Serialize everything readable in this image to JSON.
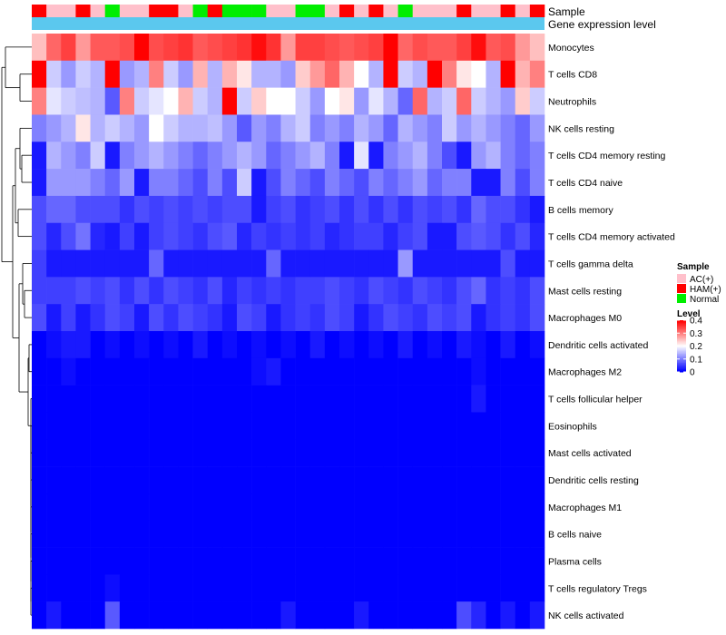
{
  "chart_data": {
    "type": "heatmap",
    "annotation_labels": [
      "Sample",
      "Gene expression level"
    ],
    "sample_groups": [
      "HAM(+)",
      "AC(+)",
      "AC(+)",
      "HAM(+)",
      "AC(+)",
      "Normal",
      "AC(+)",
      "AC(+)",
      "HAM(+)",
      "HAM(+)",
      "AC(+)",
      "Normal",
      "HAM(+)",
      "Normal",
      "Normal",
      "Normal",
      "AC(+)",
      "AC(+)",
      "Normal",
      "Normal",
      "AC(+)",
      "HAM(+)",
      "AC(+)",
      "HAM(+)",
      "AC(+)",
      "Normal",
      "AC(+)",
      "AC(+)",
      "AC(+)",
      "HAM(+)",
      "AC(+)",
      "AC(+)",
      "HAM(+)",
      "AC(+)",
      "HAM(+)"
    ],
    "rows": [
      "Monocytes",
      "T cells CD8",
      "Neutrophils",
      "NK cells resting",
      "T cells CD4 memory resting",
      "T cells CD4 naive",
      "B cells memory",
      "T cells CD4 memory activated",
      "T cells gamma delta",
      "Mast cells resting",
      "Macrophages M0",
      "Dendritic cells activated",
      "Macrophages M2",
      "T cells follicular helper",
      "Eosinophils",
      "Mast cells activated",
      "Dendritic cells resting",
      "Macrophages M1",
      "B cells naive",
      "Plasma cells",
      "T cells regulatory  Tregs",
      "NK cells activated"
    ],
    "values": [
      [
        0.25,
        0.32,
        0.35,
        0.28,
        0.33,
        0.33,
        0.34,
        0.4,
        0.34,
        0.35,
        0.36,
        0.33,
        0.34,
        0.35,
        0.36,
        0.39,
        0.36,
        0.28,
        0.35,
        0.35,
        0.34,
        0.33,
        0.34,
        0.35,
        0.4,
        0.32,
        0.34,
        0.33,
        0.33,
        0.35,
        0.39,
        0.33,
        0.34,
        0.28,
        0.25
      ],
      [
        0.4,
        0.16,
        0.12,
        0.16,
        0.14,
        0.4,
        0.12,
        0.14,
        0.3,
        0.16,
        0.12,
        0.26,
        0.14,
        0.26,
        0.22,
        0.14,
        0.14,
        0.12,
        0.24,
        0.28,
        0.32,
        0.26,
        0.2,
        0.14,
        0.4,
        0.16,
        0.14,
        0.4,
        0.3,
        0.22,
        0.2,
        0.14,
        0.4,
        0.26,
        0.3
      ],
      [
        0.3,
        0.18,
        0.16,
        0.15,
        0.14,
        0.07,
        0.3,
        0.16,
        0.18,
        0.2,
        0.26,
        0.16,
        0.14,
        0.4,
        0.16,
        0.24,
        0.2,
        0.2,
        0.16,
        0.12,
        0.2,
        0.22,
        0.12,
        0.18,
        0.14,
        0.08,
        0.32,
        0.14,
        0.16,
        0.32,
        0.16,
        0.14,
        0.12,
        0.24,
        0.16
      ],
      [
        0.1,
        0.12,
        0.14,
        0.22,
        0.14,
        0.16,
        0.14,
        0.12,
        0.2,
        0.16,
        0.14,
        0.14,
        0.15,
        0.12,
        0.07,
        0.12,
        0.1,
        0.14,
        0.16,
        0.1,
        0.12,
        0.1,
        0.14,
        0.12,
        0.08,
        0.14,
        0.12,
        0.1,
        0.16,
        0.12,
        0.14,
        0.12,
        0.1,
        0.08,
        0.12
      ],
      [
        0.02,
        0.14,
        0.12,
        0.1,
        0.16,
        0.02,
        0.1,
        0.12,
        0.14,
        0.12,
        0.1,
        0.08,
        0.1,
        0.12,
        0.14,
        0.12,
        0.08,
        0.1,
        0.12,
        0.14,
        0.1,
        0.02,
        0.18,
        0.02,
        0.1,
        0.12,
        0.14,
        0.1,
        0.06,
        0.02,
        0.12,
        0.14,
        0.1,
        0.08,
        0.1
      ],
      [
        0.02,
        0.12,
        0.12,
        0.12,
        0.1,
        0.08,
        0.12,
        0.02,
        0.1,
        0.1,
        0.08,
        0.06,
        0.1,
        0.06,
        0.16,
        0.02,
        0.06,
        0.1,
        0.08,
        0.06,
        0.1,
        0.08,
        0.06,
        0.1,
        0.08,
        0.1,
        0.12,
        0.08,
        0.1,
        0.1,
        0.02,
        0.02,
        0.1,
        0.06,
        0.1
      ],
      [
        0.06,
        0.08,
        0.08,
        0.06,
        0.06,
        0.06,
        0.04,
        0.06,
        0.05,
        0.06,
        0.05,
        0.06,
        0.05,
        0.06,
        0.06,
        0.02,
        0.05,
        0.06,
        0.04,
        0.05,
        0.06,
        0.04,
        0.06,
        0.04,
        0.06,
        0.04,
        0.06,
        0.05,
        0.06,
        0.04,
        0.08,
        0.06,
        0.06,
        0.04,
        0.02
      ],
      [
        0.06,
        0.03,
        0.06,
        0.09,
        0.03,
        0.02,
        0.05,
        0.02,
        0.05,
        0.06,
        0.05,
        0.04,
        0.06,
        0.07,
        0.03,
        0.05,
        0.04,
        0.05,
        0.04,
        0.05,
        0.03,
        0.04,
        0.05,
        0.05,
        0.03,
        0.05,
        0.06,
        0.02,
        0.02,
        0.06,
        0.07,
        0.06,
        0.04,
        0.06,
        0.03
      ],
      [
        0.05,
        0.02,
        0.02,
        0.02,
        0.02,
        0.02,
        0.02,
        0.02,
        0.08,
        0.02,
        0.02,
        0.02,
        0.02,
        0.02,
        0.02,
        0.02,
        0.08,
        0.02,
        0.02,
        0.02,
        0.02,
        0.02,
        0.02,
        0.02,
        0.02,
        0.12,
        0.02,
        0.02,
        0.02,
        0.02,
        0.02,
        0.02,
        0.06,
        0.02,
        0.02
      ],
      [
        0.05,
        0.05,
        0.05,
        0.06,
        0.05,
        0.06,
        0.04,
        0.06,
        0.04,
        0.06,
        0.05,
        0.04,
        0.06,
        0.03,
        0.05,
        0.04,
        0.05,
        0.04,
        0.05,
        0.05,
        0.06,
        0.05,
        0.04,
        0.06,
        0.05,
        0.04,
        0.06,
        0.05,
        0.04,
        0.06,
        0.08,
        0.04,
        0.05,
        0.04,
        0.06
      ],
      [
        0.06,
        0.02,
        0.05,
        0.02,
        0.04,
        0.06,
        0.05,
        0.02,
        0.06,
        0.04,
        0.06,
        0.05,
        0.04,
        0.02,
        0.06,
        0.05,
        0.02,
        0.04,
        0.05,
        0.04,
        0.06,
        0.05,
        0.02,
        0.04,
        0.06,
        0.05,
        0.04,
        0.06,
        0.05,
        0.06,
        0.02,
        0.04,
        0.05,
        0.04,
        0.06
      ],
      [
        0.0,
        0.01,
        0.02,
        0.02,
        0.0,
        0.01,
        0.0,
        0.01,
        0.0,
        0.01,
        0.0,
        0.02,
        0.0,
        0.01,
        0.0,
        0.01,
        0.0,
        0.01,
        0.0,
        0.02,
        0.0,
        0.01,
        0.0,
        0.01,
        0.0,
        0.02,
        0.0,
        0.01,
        0.0,
        0.02,
        0.01,
        0.0,
        0.02,
        0.0,
        0.01
      ],
      [
        0.0,
        0.0,
        0.01,
        0.0,
        0.0,
        0.0,
        0.0,
        0.0,
        0.0,
        0.0,
        0.0,
        0.0,
        0.0,
        0.0,
        0.0,
        0.01,
        0.02,
        0.0,
        0.0,
        0.0,
        0.0,
        0.0,
        0.0,
        0.0,
        0.0,
        0.0,
        0.0,
        0.0,
        0.0,
        0.0,
        0.01,
        0.0,
        0.0,
        0.0,
        0.0
      ],
      [
        0.0,
        0.0,
        0.0,
        0.0,
        0.0,
        0.0,
        0.0,
        0.0,
        0.0,
        0.0,
        0.0,
        0.0,
        0.0,
        0.0,
        0.0,
        0.0,
        0.0,
        0.0,
        0.0,
        0.0,
        0.0,
        0.0,
        0.0,
        0.0,
        0.0,
        0.0,
        0.0,
        0.0,
        0.0,
        0.0,
        0.02,
        0.0,
        0.0,
        0.0,
        0.0
      ],
      [
        0.0,
        0.0,
        0.0,
        0.0,
        0.0,
        0.0,
        0.0,
        0.0,
        0.0,
        0.0,
        0.0,
        0.0,
        0.0,
        0.0,
        0.0,
        0.0,
        0.0,
        0.0,
        0.0,
        0.0,
        0.0,
        0.0,
        0.0,
        0.0,
        0.0,
        0.0,
        0.0,
        0.0,
        0.0,
        0.0,
        0.0,
        0.0,
        0.0,
        0.0,
        0.0
      ],
      [
        0.0,
        0.0,
        0.0,
        0.0,
        0.0,
        0.0,
        0.0,
        0.0,
        0.0,
        0.0,
        0.0,
        0.0,
        0.0,
        0.0,
        0.0,
        0.0,
        0.0,
        0.0,
        0.0,
        0.0,
        0.0,
        0.0,
        0.0,
        0.0,
        0.0,
        0.0,
        0.0,
        0.0,
        0.0,
        0.0,
        0.0,
        0.0,
        0.0,
        0.0,
        0.0
      ],
      [
        0.0,
        0.0,
        0.0,
        0.0,
        0.0,
        0.0,
        0.0,
        0.0,
        0.0,
        0.0,
        0.0,
        0.0,
        0.0,
        0.0,
        0.0,
        0.0,
        0.0,
        0.0,
        0.0,
        0.0,
        0.0,
        0.0,
        0.0,
        0.0,
        0.0,
        0.0,
        0.0,
        0.0,
        0.0,
        0.0,
        0.0,
        0.0,
        0.0,
        0.0,
        0.0
      ],
      [
        0.0,
        0.0,
        0.0,
        0.0,
        0.0,
        0.0,
        0.0,
        0.0,
        0.0,
        0.0,
        0.0,
        0.0,
        0.0,
        0.0,
        0.0,
        0.0,
        0.0,
        0.0,
        0.0,
        0.0,
        0.0,
        0.0,
        0.0,
        0.0,
        0.0,
        0.0,
        0.0,
        0.0,
        0.0,
        0.0,
        0.0,
        0.0,
        0.0,
        0.0,
        0.0
      ],
      [
        0.0,
        0.0,
        0.0,
        0.0,
        0.0,
        0.0,
        0.0,
        0.0,
        0.0,
        0.0,
        0.0,
        0.0,
        0.0,
        0.0,
        0.0,
        0.0,
        0.0,
        0.0,
        0.0,
        0.0,
        0.0,
        0.0,
        0.0,
        0.0,
        0.0,
        0.0,
        0.0,
        0.0,
        0.0,
        0.0,
        0.0,
        0.0,
        0.0,
        0.0,
        0.0
      ],
      [
        0.0,
        0.0,
        0.0,
        0.0,
        0.0,
        0.0,
        0.0,
        0.0,
        0.0,
        0.0,
        0.0,
        0.0,
        0.0,
        0.0,
        0.0,
        0.0,
        0.0,
        0.0,
        0.0,
        0.0,
        0.0,
        0.0,
        0.0,
        0.0,
        0.0,
        0.0,
        0.0,
        0.0,
        0.0,
        0.0,
        0.0,
        0.0,
        0.0,
        0.0,
        0.0
      ],
      [
        0.0,
        0.0,
        0.0,
        0.0,
        0.0,
        0.01,
        0.0,
        0.0,
        0.0,
        0.0,
        0.0,
        0.0,
        0.0,
        0.0,
        0.0,
        0.0,
        0.0,
        0.0,
        0.0,
        0.0,
        0.0,
        0.0,
        0.0,
        0.0,
        0.0,
        0.0,
        0.0,
        0.0,
        0.0,
        0.0,
        0.0,
        0.0,
        0.0,
        0.0,
        0.0
      ],
      [
        0.0,
        0.02,
        0.0,
        0.0,
        0.0,
        0.07,
        0.0,
        0.0,
        0.0,
        0.0,
        0.0,
        0.0,
        0.0,
        0.0,
        0.0,
        0.0,
        0.0,
        0.02,
        0.0,
        0.0,
        0.0,
        0.0,
        0.02,
        0.0,
        0.0,
        0.0,
        0.0,
        0.0,
        0.0,
        0.06,
        0.03,
        0.0,
        0.02,
        0.0,
        0.02
      ]
    ],
    "legend_sample": {
      "title": "Sample",
      "entries": [
        {
          "label": "AC(+)",
          "color": "#ffc0cb"
        },
        {
          "label": "HAM(+)",
          "color": "#ff0000"
        },
        {
          "label": "Normal",
          "color": "#00ee00"
        }
      ]
    },
    "legend_level": {
      "title": "Level",
      "ticks": [
        "0.4",
        "0.3",
        "0.2",
        "0.1",
        "0"
      ],
      "tick_values": [
        0.4,
        0.3,
        0.2,
        0.1,
        0
      ],
      "range": [
        0,
        0.4
      ]
    },
    "colors": {
      "low": "#0000ff",
      "mid": "#ffffff",
      "high": "#ff0000",
      "expression_bar": "#5bc8ee"
    }
  }
}
